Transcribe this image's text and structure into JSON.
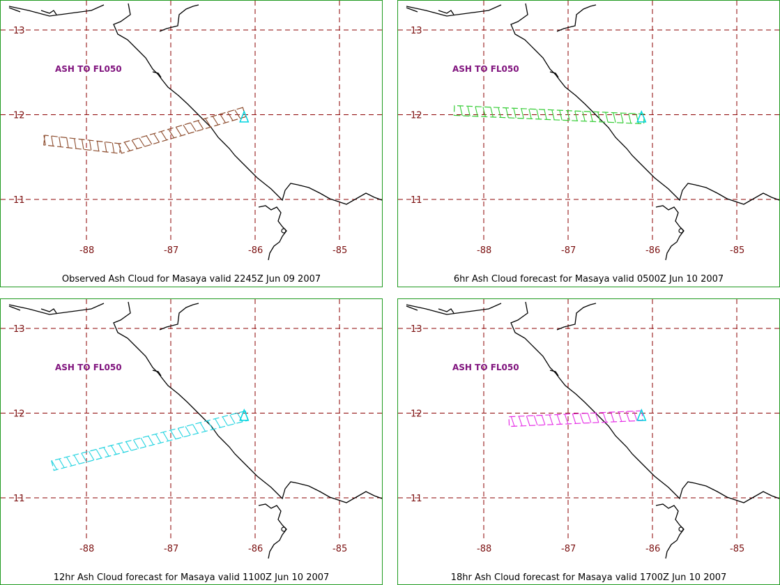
{
  "map_axes": {
    "lat_ticks": [
      "13",
      "12",
      "11"
    ],
    "lon_ticks": [
      "-88",
      "-87",
      "-86",
      "-85"
    ]
  },
  "colors": {
    "grid": "#8b0000",
    "border": "#1f9a1f",
    "coast": "#000000",
    "vent_marker": "#00d5e0",
    "ash_label": "#80147e"
  },
  "panels": [
    {
      "caption": "Observed Ash Cloud for Masaya valid 2245Z Jun 09 2007",
      "ash_label": "ASH TO FL050",
      "cloud_color": "#8b4a2b",
      "cloud": {
        "type": "polygon",
        "vertices": [
          [
            -86.13,
            12.03
          ],
          [
            -87.6,
            11.6
          ],
          [
            -88.5,
            11.7
          ]
        ]
      }
    },
    {
      "caption": "6hr Ash Cloud forecast for Masaya valid 0500Z Jun 10 2007",
      "ash_label": "ASH TO FL050",
      "cloud_color": "#33cc33",
      "cloud": {
        "type": "band",
        "from": [
          -88.35,
          12.05
        ],
        "to": [
          -86.1,
          11.95
        ]
      }
    },
    {
      "caption": "12hr Ash Cloud forecast for Masaya valid 1100Z Jun 10 2007",
      "ash_label": "ASH TO FL050",
      "cloud_color": "#22d3e0",
      "cloud": {
        "type": "band",
        "from": [
          -86.1,
          11.97
        ],
        "to": [
          -88.4,
          11.38
        ]
      }
    },
    {
      "caption": "18hr Ash Cloud forecast for Masaya valid 1700Z Jun 10 2007",
      "ash_label": "ASH TO FL050",
      "cloud_color": "#e62ee6",
      "cloud": {
        "type": "band",
        "from": [
          -86.12,
          11.97
        ],
        "to": [
          -87.7,
          11.9
        ]
      }
    }
  ]
}
